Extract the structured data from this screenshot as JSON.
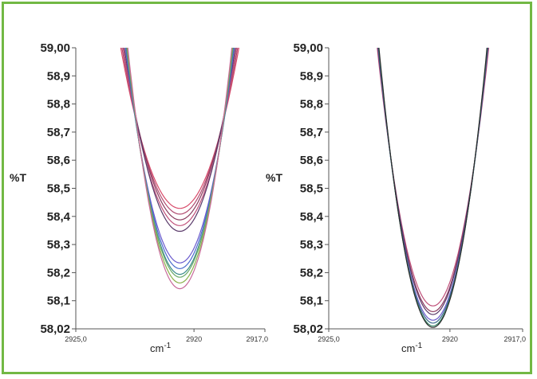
{
  "colors": {
    "border": "#72b844",
    "axis": "#555555"
  },
  "chart_data": [
    {
      "type": "line",
      "ylabel": "%T",
      "xlabel": "cm-1",
      "xlim": [
        2925.0,
        2917.0
      ],
      "ylim": [
        58.02,
        59.0
      ],
      "xticks": [
        "2925,0",
        "2920",
        "2917,0"
      ],
      "yticks": [
        "59,00",
        "58,9",
        "58,8",
        "58,7",
        "58,6",
        "58,5",
        "58,4",
        "58,3",
        "58,2",
        "58,1",
        "58,02"
      ],
      "curve_vertex_x": 2920.6,
      "series": [
        {
          "color": "#d84a6a",
          "min_y": 58.44,
          "width": 2.5
        },
        {
          "color": "#b04a70",
          "min_y": 58.42,
          "width": 2.45
        },
        {
          "color": "#8a3a5e",
          "min_y": 58.4,
          "width": 2.4
        },
        {
          "color": "#c0507a",
          "min_y": 58.38,
          "width": 2.4
        },
        {
          "color": "#5a3a6a",
          "min_y": 58.36,
          "width": 2.35
        },
        {
          "color": "#6a5acd",
          "min_y": 58.25,
          "width": 2.3
        },
        {
          "color": "#4a6acd",
          "min_y": 58.23,
          "width": 2.28
        },
        {
          "color": "#3a8a8a",
          "min_y": 58.21,
          "width": 2.26
        },
        {
          "color": "#6aaa6a",
          "min_y": 58.2,
          "width": 2.24
        },
        {
          "color": "#8ab04a",
          "min_y": 58.18,
          "width": 2.22
        },
        {
          "color": "#c86a9a",
          "min_y": 58.16,
          "width": 2.2
        }
      ]
    },
    {
      "type": "line",
      "ylabel": "%T",
      "xlabel": "cm-1",
      "xlim": [
        2925.0,
        2917.0
      ],
      "ylim": [
        58.02,
        59.0
      ],
      "xticks": [
        "2925,0",
        "2920",
        "2917,0"
      ],
      "yticks": [
        "59,00",
        "58,9",
        "58,8",
        "58,7",
        "58,6",
        "58,5",
        "58,4",
        "58,3",
        "58,2",
        "58,1",
        "58,02"
      ],
      "curve_vertex_x": 2920.7,
      "series": [
        {
          "color": "#c0507a",
          "min_y": 58.1,
          "width": 2.3
        },
        {
          "color": "#8a3a5e",
          "min_y": 58.08,
          "width": 2.28
        },
        {
          "color": "#5a3a6a",
          "min_y": 58.07,
          "width": 2.27
        },
        {
          "color": "#6a5acd",
          "min_y": 58.05,
          "width": 2.26
        },
        {
          "color": "#3a6a8a",
          "min_y": 58.04,
          "width": 2.25
        },
        {
          "color": "#3a8a6a",
          "min_y": 58.03,
          "width": 2.24
        },
        {
          "color": "#2a2a2a",
          "min_y": 58.025,
          "width": 2.23
        }
      ]
    }
  ]
}
